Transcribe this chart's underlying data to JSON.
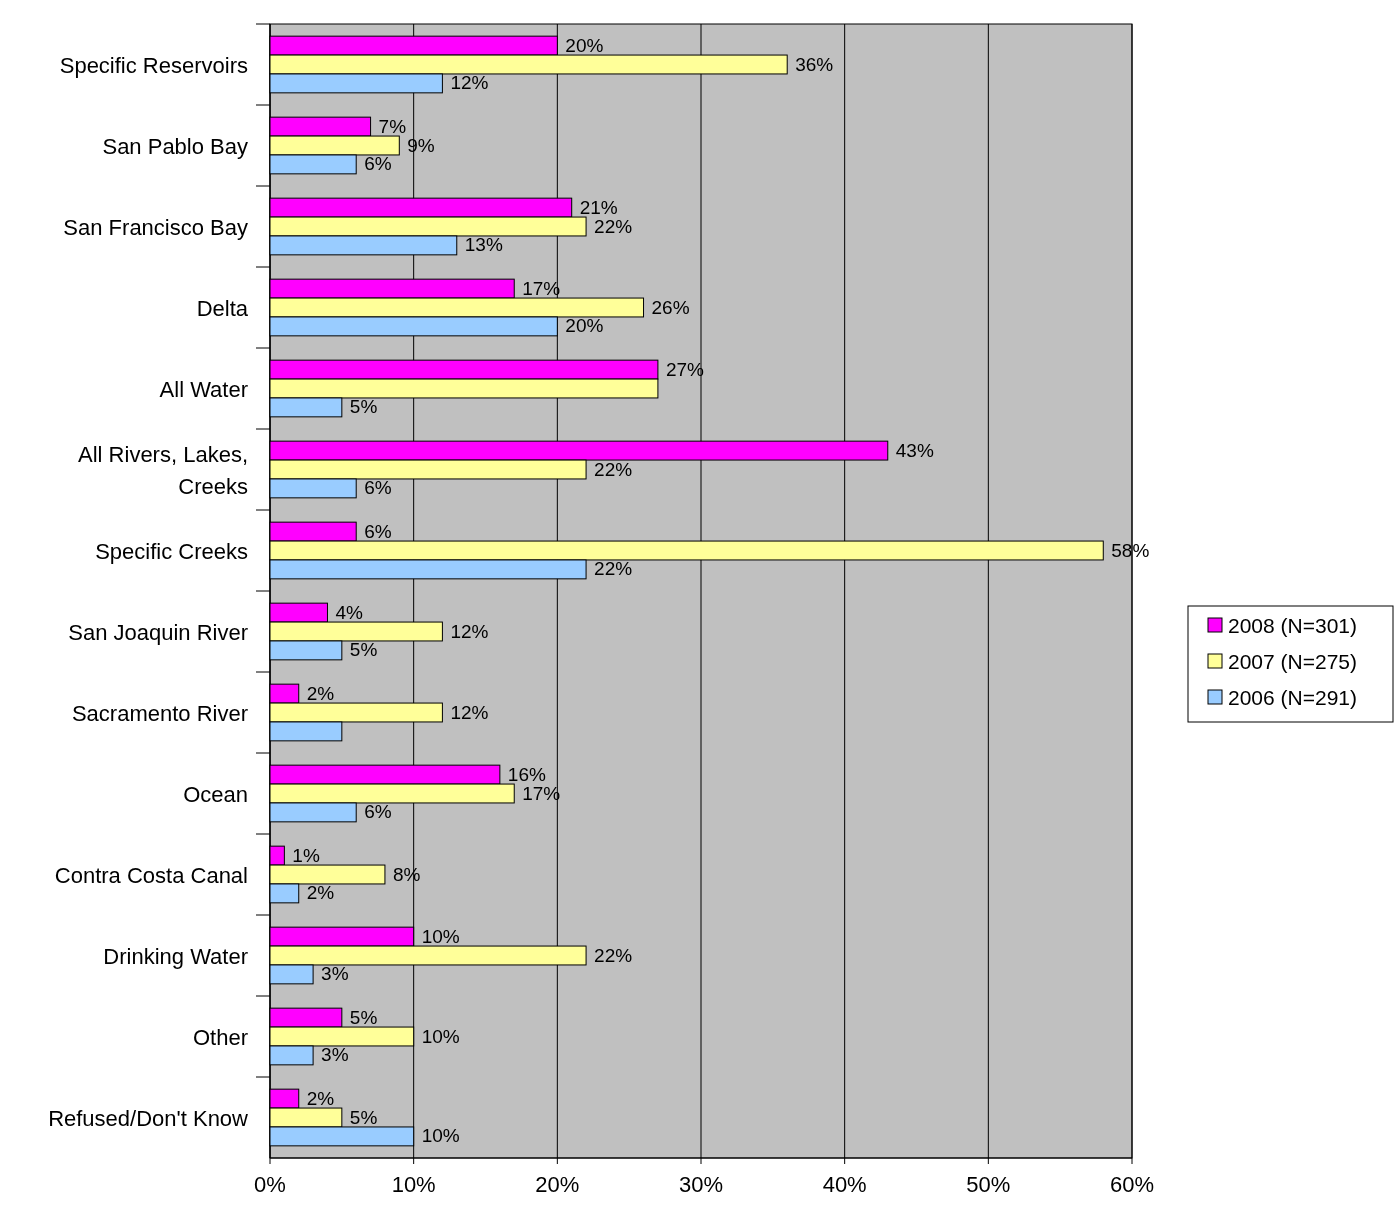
{
  "chart_data": {
    "type": "bar",
    "orientation": "horizontal",
    "categories": [
      "Specific Reservoirs",
      "San Pablo Bay",
      "San Francisco Bay",
      "Delta",
      "All Water",
      "All Rivers, Lakes, Creeks",
      "Specific Creeks",
      "San Joaquin River",
      "Sacramento River",
      "Ocean",
      "Contra Costa Canal",
      "Drinking Water",
      "Other",
      "Refused/Don't Know"
    ],
    "series": [
      {
        "name": "2008 (N=301)",
        "color": "#ff00ff",
        "values": [
          20,
          7,
          21,
          17,
          27,
          43,
          6,
          4,
          2,
          16,
          1,
          10,
          5,
          2
        ],
        "value_labels": [
          "20%",
          "7%",
          "21%",
          "17%",
          "27%",
          "43%",
          "6%",
          "4%",
          "2%",
          "16%",
          "1%",
          "10%",
          "5%",
          "2%"
        ]
      },
      {
        "name": "2007 (N=275)",
        "color": "#ffff99",
        "values": [
          36,
          9,
          22,
          26,
          27,
          22,
          58,
          12,
          12,
          17,
          8,
          22,
          10,
          5
        ],
        "value_labels": [
          "36%",
          "9%",
          "22%",
          "26%",
          null,
          "22%",
          "58%",
          "12%",
          "12%",
          "17%",
          "8%",
          "22%",
          "10%",
          "5%"
        ]
      },
      {
        "name": "2006 (N=291)",
        "color": "#99ccff",
        "values": [
          12,
          6,
          13,
          20,
          5,
          6,
          22,
          5,
          5,
          6,
          2,
          3,
          3,
          10
        ],
        "value_labels": [
          "12%",
          "6%",
          "13%",
          "20%",
          "5%",
          "6%",
          "22%",
          "5%",
          null,
          "6%",
          "2%",
          "3%",
          "3%",
          "10%"
        ]
      }
    ],
    "xlim": [
      0,
      60
    ],
    "xticks": [
      {
        "value": 0,
        "label": "0%"
      },
      {
        "value": 10,
        "label": "10%"
      },
      {
        "value": 20,
        "label": "20%"
      },
      {
        "value": 30,
        "label": "30%"
      },
      {
        "value": 40,
        "label": "40%"
      },
      {
        "value": 50,
        "label": "50%"
      },
      {
        "value": 60,
        "label": "60%"
      }
    ],
    "grid": "x",
    "legend": "right"
  }
}
